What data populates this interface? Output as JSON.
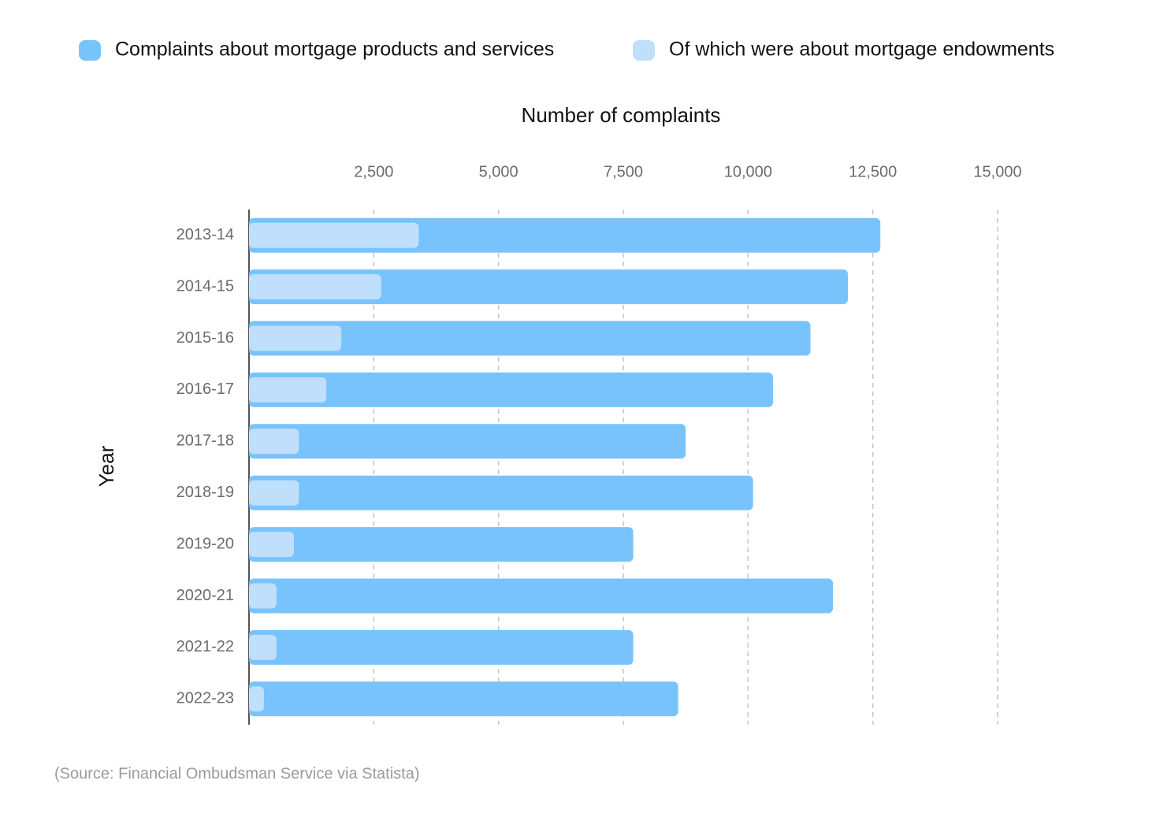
{
  "chart_data": {
    "type": "bar",
    "orientation": "horizontal",
    "x_label": "Number of complaints",
    "y_label": "Year",
    "source": "(Source: Financial Ombudsman Service via Statista)",
    "categories": [
      "2013-14",
      "2014-15",
      "2015-16",
      "2016-17",
      "2017-18",
      "2018-19",
      "2019-20",
      "2020-21",
      "2021-22",
      "2022-23"
    ],
    "series": [
      {
        "name": "Complaints about mortgage products and services",
        "color": "#79c3fd",
        "values": [
          12650,
          12000,
          11250,
          10500,
          8750,
          10100,
          7700,
          11700,
          7700,
          8600
        ]
      },
      {
        "name": "Of which were about mortgage endowments",
        "color": "#bfdffd",
        "values": [
          3400,
          2650,
          1850,
          1550,
          1000,
          1000,
          900,
          550,
          550,
          300
        ]
      }
    ],
    "xlim": [
      0,
      15000
    ],
    "xticks": [
      {
        "value": 2500,
        "label": "2,500"
      },
      {
        "value": 5000,
        "label": "5,000"
      },
      {
        "value": 7500,
        "label": "7,500"
      },
      {
        "value": 10000,
        "label": "10,000"
      },
      {
        "value": 12500,
        "label": "12,500"
      },
      {
        "value": 15000,
        "label": "15,000"
      }
    ],
    "grid": true,
    "legend": "top"
  }
}
